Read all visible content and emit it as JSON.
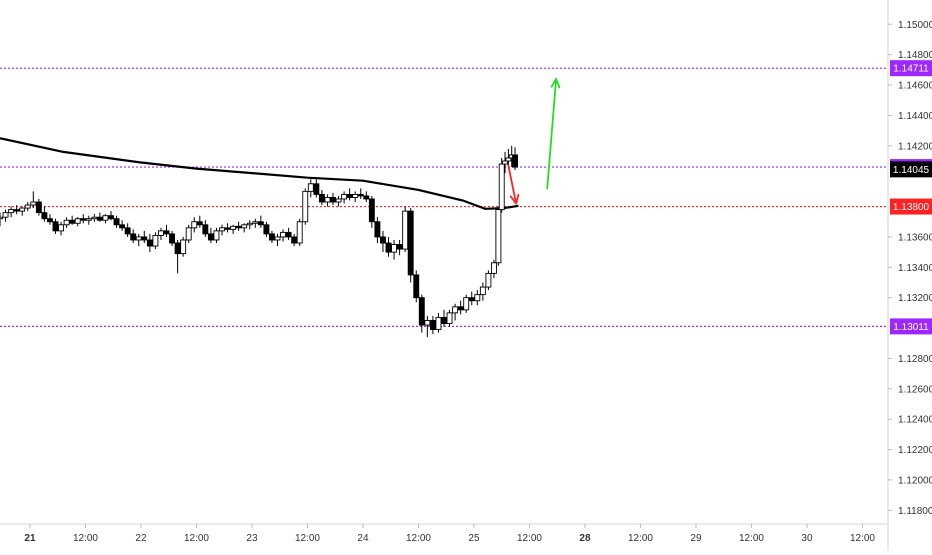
{
  "chart_data": {
    "type": "candlestick",
    "instrument": "",
    "y_axis": {
      "ylim": [
        1.1171,
        1.1516
      ],
      "ticks": [
        "1.15000",
        "1.14800",
        "1.14600",
        "1.14400",
        "1.14200",
        "1.13600",
        "1.13400",
        "1.13200",
        "1.12800",
        "1.12600",
        "1.12400",
        "1.12200",
        "1.12000",
        "1.11800"
      ],
      "tick_values": [
        1.15,
        1.148,
        1.146,
        1.144,
        1.142,
        1.136,
        1.134,
        1.132,
        1.128,
        1.126,
        1.124,
        1.122,
        1.12,
        1.118
      ]
    },
    "x_axis": {
      "labels": [
        {
          "text": "21",
          "bold": true,
          "day": 0.0
        },
        {
          "text": "12:00",
          "bold": false,
          "day": 0.5
        },
        {
          "text": "22",
          "bold": false,
          "day": 1.0
        },
        {
          "text": "12:00",
          "bold": false,
          "day": 1.5
        },
        {
          "text": "23",
          "bold": false,
          "day": 2.0
        },
        {
          "text": "12:00",
          "bold": false,
          "day": 2.5
        },
        {
          "text": "24",
          "bold": false,
          "day": 3.0
        },
        {
          "text": "12:00",
          "bold": false,
          "day": 3.5
        },
        {
          "text": "25",
          "bold": false,
          "day": 4.0
        },
        {
          "text": "12:00",
          "bold": false,
          "day": 4.5
        },
        {
          "text": "28",
          "bold": true,
          "day": 5.0
        },
        {
          "text": "12:00",
          "bold": false,
          "day": 5.5
        },
        {
          "text": "29",
          "bold": false,
          "day": 6.0
        },
        {
          "text": "12:00",
          "bold": false,
          "day": 6.5
        },
        {
          "text": "30",
          "bold": false,
          "day": 7.0
        },
        {
          "text": "12:00",
          "bold": false,
          "day": 7.5
        }
      ],
      "xlim": [
        -0.27,
        7.73
      ]
    },
    "horizontal_levels": [
      {
        "value": 1.14711,
        "label": "1.14711",
        "color": "#9c27ff",
        "style": "dotted"
      },
      {
        "value": 1.1406,
        "label": "1.14060",
        "color": "#9c27ff",
        "style": "dotted"
      },
      {
        "value": 1.138,
        "label": "1.13800",
        "color": "#ff2222",
        "style": "dotted"
      },
      {
        "value": 1.13011,
        "label": "1.13011",
        "color": "#9c27ff",
        "style": "dotted"
      }
    ],
    "last_price": {
      "value": 1.14045,
      "label": "1.14045",
      "color": "#000000"
    },
    "moving_average": {
      "color": "#000000",
      "points": [
        [
          -0.27,
          1.1425
        ],
        [
          0.3,
          1.1416
        ],
        [
          1.0,
          1.1409
        ],
        [
          1.5,
          1.1405
        ],
        [
          2.0,
          1.1402
        ],
        [
          2.5,
          1.1399
        ],
        [
          3.0,
          1.1397
        ],
        [
          3.5,
          1.1391
        ],
        [
          3.9,
          1.1384
        ],
        [
          4.1,
          1.13785
        ],
        [
          4.27,
          1.1379
        ],
        [
          4.4,
          1.13805
        ]
      ]
    },
    "annotations": [
      {
        "type": "arrow",
        "color": "#ff2222",
        "from": [
          4.31,
          1.1407
        ],
        "to": [
          4.38,
          1.1382
        ]
      },
      {
        "type": "arrow",
        "color": "#22dd22",
        "from": [
          4.66,
          1.1392
        ],
        "to": [
          4.74,
          1.1464
        ]
      }
    ],
    "candles": [
      [
        -0.27,
        1.1372,
        1.1376,
        1.1367,
        1.1373
      ],
      [
        -0.22,
        1.1373,
        1.1378,
        1.137,
        1.1376
      ],
      [
        -0.17,
        1.1376,
        1.138,
        1.1373,
        1.1378
      ],
      [
        -0.12,
        1.1378,
        1.1381,
        1.1375,
        1.1377
      ],
      [
        -0.07,
        1.1377,
        1.138,
        1.1374,
        1.1379
      ],
      [
        -0.02,
        1.1379,
        1.1383,
        1.1377,
        1.1381
      ],
      [
        0.03,
        1.1381,
        1.139,
        1.1379,
        1.1383
      ],
      [
        0.08,
        1.1383,
        1.1385,
        1.1374,
        1.1376
      ],
      [
        0.13,
        1.1376,
        1.138,
        1.137,
        1.1372
      ],
      [
        0.18,
        1.1372,
        1.1375,
        1.1368,
        1.137
      ],
      [
        0.23,
        1.137,
        1.1372,
        1.1362,
        1.1364
      ],
      [
        0.28,
        1.1364,
        1.137,
        1.1361,
        1.1368
      ],
      [
        0.33,
        1.1368,
        1.1373,
        1.1366,
        1.1371
      ],
      [
        0.38,
        1.1371,
        1.1374,
        1.1368,
        1.1369
      ],
      [
        0.43,
        1.1369,
        1.1373,
        1.1367,
        1.1372
      ],
      [
        0.48,
        1.1372,
        1.1375,
        1.1369,
        1.1371
      ],
      [
        0.53,
        1.1371,
        1.1374,
        1.1368,
        1.1372
      ],
      [
        0.58,
        1.1372,
        1.1375,
        1.137,
        1.1373
      ],
      [
        0.63,
        1.1373,
        1.1376,
        1.137,
        1.1371
      ],
      [
        0.68,
        1.1371,
        1.1375,
        1.1369,
        1.1374
      ],
      [
        0.73,
        1.1374,
        1.1377,
        1.1371,
        1.1372
      ],
      [
        0.78,
        1.1372,
        1.1374,
        1.1366,
        1.1368
      ],
      [
        0.83,
        1.1368,
        1.1371,
        1.1364,
        1.1366
      ],
      [
        0.88,
        1.1366,
        1.1369,
        1.136,
        1.1362
      ],
      [
        0.93,
        1.1362,
        1.1365,
        1.1356,
        1.1358
      ],
      [
        0.98,
        1.1358,
        1.1362,
        1.1354,
        1.136
      ],
      [
        1.03,
        1.136,
        1.1364,
        1.1356,
        1.1358
      ],
      [
        1.08,
        1.1358,
        1.1362,
        1.135,
        1.1354
      ],
      [
        1.13,
        1.1354,
        1.1363,
        1.1352,
        1.1361
      ],
      [
        1.18,
        1.1361,
        1.1366,
        1.1358,
        1.1364
      ],
      [
        1.23,
        1.1364,
        1.1368,
        1.136,
        1.1362
      ],
      [
        1.28,
        1.1362,
        1.1364,
        1.1354,
        1.1356
      ],
      [
        1.33,
        1.1356,
        1.1358,
        1.1336,
        1.1349
      ],
      [
        1.38,
        1.1349,
        1.136,
        1.1347,
        1.1358
      ],
      [
        1.43,
        1.1358,
        1.1368,
        1.1356,
        1.1366
      ],
      [
        1.48,
        1.1366,
        1.1373,
        1.1363,
        1.137
      ],
      [
        1.53,
        1.137,
        1.1374,
        1.1366,
        1.1368
      ],
      [
        1.58,
        1.1368,
        1.1371,
        1.136,
        1.1362
      ],
      [
        1.63,
        1.1362,
        1.1366,
        1.1356,
        1.1358
      ],
      [
        1.68,
        1.1358,
        1.1366,
        1.1356,
        1.1364
      ],
      [
        1.73,
        1.1364,
        1.1368,
        1.1361,
        1.1366
      ],
      [
        1.78,
        1.1366,
        1.1369,
        1.1363,
        1.1365
      ],
      [
        1.83,
        1.1365,
        1.1368,
        1.1362,
        1.1367
      ],
      [
        1.88,
        1.1367,
        1.137,
        1.1364,
        1.1366
      ],
      [
        1.93,
        1.1366,
        1.1369,
        1.1363,
        1.1368
      ],
      [
        1.98,
        1.1368,
        1.1371,
        1.1365,
        1.1369
      ],
      [
        2.03,
        1.1369,
        1.1372,
        1.1366,
        1.137
      ],
      [
        2.08,
        1.137,
        1.1374,
        1.1366,
        1.1368
      ],
      [
        2.13,
        1.1368,
        1.137,
        1.136,
        1.1362
      ],
      [
        2.18,
        1.1362,
        1.1364,
        1.1356,
        1.1358
      ],
      [
        2.23,
        1.1358,
        1.1362,
        1.1354,
        1.136
      ],
      [
        2.28,
        1.136,
        1.1365,
        1.1357,
        1.1363
      ],
      [
        2.33,
        1.1363,
        1.1366,
        1.1358,
        1.136
      ],
      [
        2.38,
        1.136,
        1.1362,
        1.1354,
        1.1356
      ],
      [
        2.43,
        1.1356,
        1.1372,
        1.1354,
        1.137
      ],
      [
        2.48,
        1.137,
        1.1392,
        1.1368,
        1.139
      ],
      [
        2.53,
        1.139,
        1.1398,
        1.1386,
        1.1395
      ],
      [
        2.58,
        1.1395,
        1.1398,
        1.1386,
        1.1388
      ],
      [
        2.63,
        1.1388,
        1.1391,
        1.1381,
        1.1383
      ],
      [
        2.68,
        1.1383,
        1.1388,
        1.138,
        1.1386
      ],
      [
        2.73,
        1.1386,
        1.1389,
        1.1381,
        1.1383
      ],
      [
        2.78,
        1.1383,
        1.1387,
        1.138,
        1.1385
      ],
      [
        2.83,
        1.1385,
        1.139,
        1.1382,
        1.1388
      ],
      [
        2.88,
        1.1388,
        1.1392,
        1.1384,
        1.1386
      ],
      [
        2.93,
        1.1386,
        1.139,
        1.1383,
        1.1388
      ],
      [
        2.98,
        1.1388,
        1.1392,
        1.1385,
        1.1387
      ],
      [
        3.03,
        1.1387,
        1.139,
        1.1383,
        1.1385
      ],
      [
        3.08,
        1.1385,
        1.1387,
        1.1366,
        1.137
      ],
      [
        3.13,
        1.137,
        1.1373,
        1.1356,
        1.136
      ],
      [
        3.18,
        1.136,
        1.1364,
        1.135,
        1.1356
      ],
      [
        3.23,
        1.1356,
        1.136,
        1.1347,
        1.135
      ],
      [
        3.28,
        1.135,
        1.1358,
        1.1345,
        1.1355
      ],
      [
        3.33,
        1.1355,
        1.1358,
        1.1348,
        1.1352
      ],
      [
        3.38,
        1.1352,
        1.138,
        1.135,
        1.1377
      ],
      [
        3.43,
        1.1377,
        1.1379,
        1.133,
        1.1335
      ],
      [
        3.48,
        1.1335,
        1.1338,
        1.1317,
        1.132
      ],
      [
        3.53,
        1.132,
        1.1322,
        1.1297,
        1.1302
      ],
      [
        3.58,
        1.1302,
        1.1308,
        1.1294,
        1.1305
      ],
      [
        3.63,
        1.1305,
        1.1308,
        1.1296,
        1.1299
      ],
      [
        3.68,
        1.1299,
        1.131,
        1.1297,
        1.1307
      ],
      [
        3.73,
        1.1307,
        1.1312,
        1.1301,
        1.1303
      ],
      [
        3.78,
        1.1303,
        1.1312,
        1.1301,
        1.131
      ],
      [
        3.83,
        1.131,
        1.1316,
        1.1305,
        1.1314
      ],
      [
        3.88,
        1.1314,
        1.1318,
        1.1309,
        1.1312
      ],
      [
        3.93,
        1.1312,
        1.1322,
        1.131,
        1.132
      ],
      [
        3.98,
        1.132,
        1.1324,
        1.1315,
        1.1318
      ],
      [
        4.03,
        1.1318,
        1.1325,
        1.1315,
        1.1322
      ],
      [
        4.08,
        1.1322,
        1.133,
        1.1318,
        1.1327
      ],
      [
        4.13,
        1.1327,
        1.1338,
        1.1325,
        1.1336
      ],
      [
        4.18,
        1.1336,
        1.1345,
        1.1333,
        1.1343
      ],
      [
        4.22,
        1.1343,
        1.138,
        1.1341,
        1.1378
      ],
      [
        4.25,
        1.1378,
        1.1412,
        1.1376,
        1.1408
      ],
      [
        4.28,
        1.1408,
        1.1416,
        1.1402,
        1.141
      ],
      [
        4.31,
        1.141,
        1.1418,
        1.1405,
        1.1412
      ],
      [
        4.34,
        1.1412,
        1.142,
        1.1406,
        1.1414
      ],
      [
        4.37,
        1.1414,
        1.1419,
        1.1404,
        1.1406
      ]
    ]
  }
}
